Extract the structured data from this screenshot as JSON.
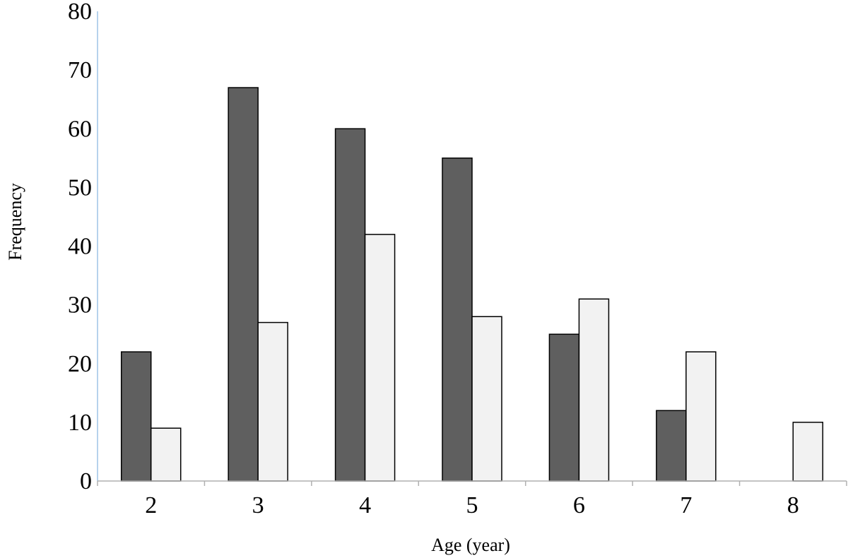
{
  "chart_data": {
    "type": "bar",
    "categories": [
      "2",
      "3",
      "4",
      "5",
      "6",
      "7",
      "8"
    ],
    "series": [
      {
        "values": [
          22,
          67,
          60,
          55,
          25,
          12,
          0
        ],
        "color": "#5f5f5f"
      },
      {
        "values": [
          9,
          27,
          42,
          28,
          31,
          22,
          10
        ],
        "color": "#f2f2f2"
      }
    ],
    "xlabel": "Age (year)",
    "ylabel": "Frequency",
    "ylim": [
      0,
      80
    ],
    "yticks": [
      "0",
      "10",
      "20",
      "30",
      "40",
      "50",
      "60",
      "70",
      "80"
    ],
    "grid": false,
    "legend": "none",
    "colors": {
      "bar_stroke": "#000000",
      "y_axis": "#9dc3e6",
      "x_axis": "#b0b0b0"
    }
  }
}
